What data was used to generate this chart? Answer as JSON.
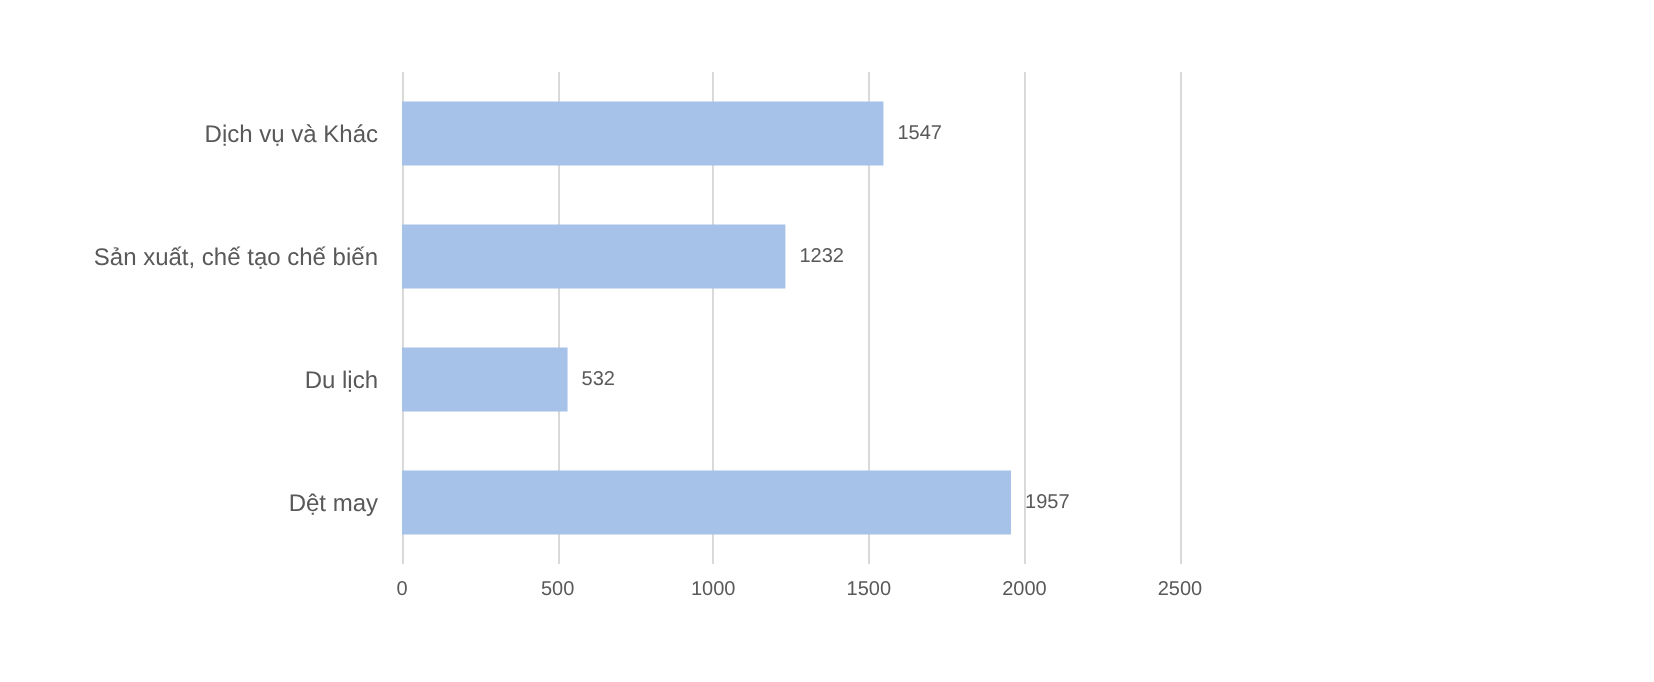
{
  "chart_data": {
    "type": "bar",
    "orientation": "horizontal",
    "categories": [
      "Dịch vụ và Khác",
      "Sản xuất, chế tạo chế biến",
      "Du lịch",
      "Dệt may"
    ],
    "values": [
      1547,
      1232,
      532,
      1957
    ],
    "color": "#a7c2e8",
    "xlim": [
      0,
      2500
    ],
    "xticks": [
      0,
      500,
      1000,
      1500,
      2000,
      2500
    ],
    "grid": "x",
    "data_labels": true
  }
}
